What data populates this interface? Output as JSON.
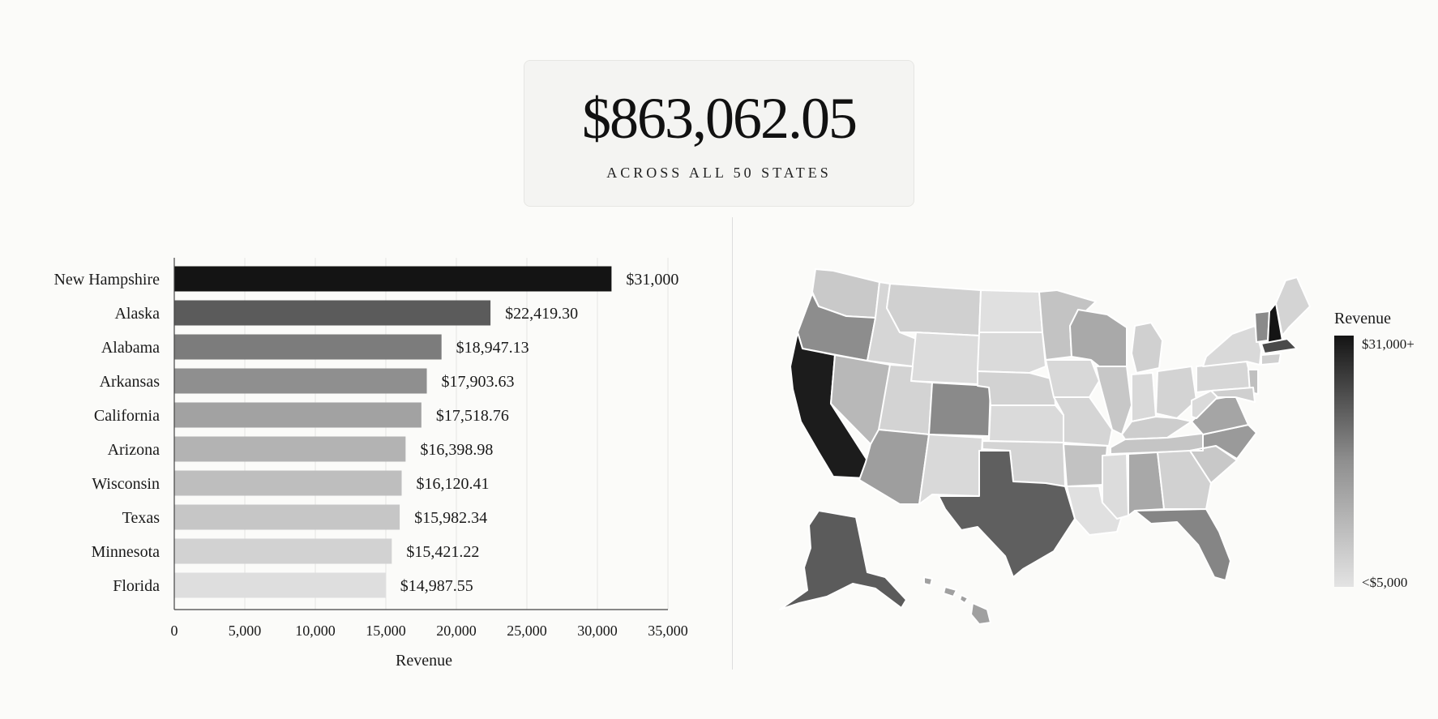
{
  "kpi": {
    "value": "$863,062.05",
    "caption": "ACROSS ALL 50 STATES"
  },
  "chart_data": {
    "type": "bar",
    "orientation": "horizontal",
    "categories": [
      "New Hampshire",
      "Alaska",
      "Alabama",
      "Arkansas",
      "California",
      "Arizona",
      "Wisconsin",
      "Texas",
      "Minnesota",
      "Florida"
    ],
    "values": [
      31000,
      22419.3,
      18947.13,
      17903.63,
      17518.76,
      16398.98,
      16120.41,
      15982.34,
      15421.22,
      14987.55
    ],
    "value_labels": [
      "$31,000",
      "$22,419.30",
      "$18,947.13",
      "$17,903.63",
      "$17,518.76",
      "$16,398.98",
      "$16,120.41",
      "$15,982.34",
      "$15,421.22",
      "$14,987.55"
    ],
    "bar_colors": [
      "#141414",
      "#5b5b5b",
      "#7c7c7c",
      "#8f8f8f",
      "#a2a2a2",
      "#b3b3b3",
      "#bebebe",
      "#c6c6c6",
      "#d2d2d2",
      "#dedede"
    ],
    "xlim": [
      0,
      35000
    ],
    "xticks": [
      0,
      5000,
      10000,
      15000,
      20000,
      25000,
      30000,
      35000
    ],
    "xtick_labels": [
      "0",
      "5,000",
      "10,000",
      "15,000",
      "20,000",
      "25,000",
      "30,000",
      "35,000"
    ],
    "xlabel": "Revenue",
    "ylabel": "",
    "grid": true
  },
  "map": {
    "legend_title": "Revenue",
    "legend_max_label": "$31,000+",
    "legend_min_label": "<$5,000",
    "color_high": "#141414",
    "color_low": "#e3e3e3"
  }
}
